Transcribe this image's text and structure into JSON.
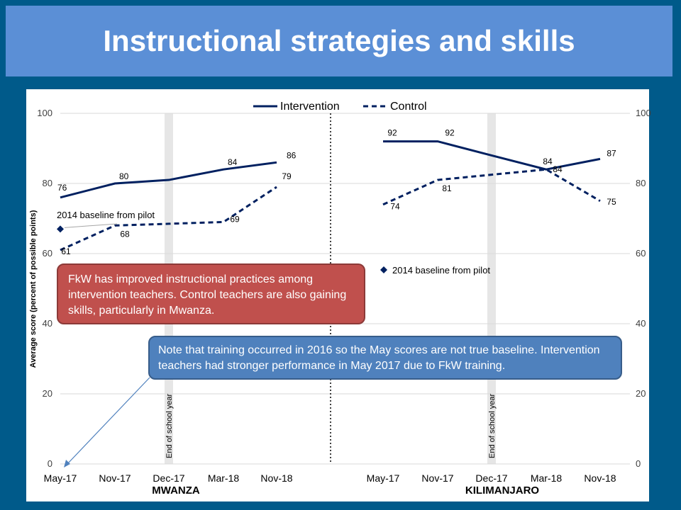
{
  "slide_title": "Instructional strategies and skills",
  "colors": {
    "background": "#005a8a",
    "title_bar": "#5b8fd6",
    "series": "#002060",
    "red_callout": "#c0504d",
    "blue_callout": "#4f81bd",
    "school_year_band": "#e6e6e6"
  },
  "callouts": {
    "red": "FkW has improved instructional practices among intervention teachers. Control teachers are also gaining skills, particularly in Mwanza.",
    "blue": "Note that training occurred in 2016 so the May scores are not true baseline. Intervention teachers had stronger performance in May 2017 due to FkW training."
  },
  "chart_data": {
    "type": "line",
    "legend": [
      {
        "name": "Intervention",
        "style": "solid"
      },
      {
        "name": "Control",
        "style": "dashed"
      }
    ],
    "legend_position": "top-center",
    "ylabel": "Average score (percent of possible points)",
    "ylim": [
      0,
      100
    ],
    "yticks": [
      "0",
      "20",
      "40",
      "60",
      "80",
      "100"
    ],
    "grid": true,
    "panels": [
      {
        "name": "MWANZA",
        "categories": [
          "May-17",
          "Nov-17",
          "Dec-17",
          "Mar-18",
          "Nov-18"
        ],
        "series": [
          {
            "name": "Intervention",
            "values": [
              76,
              80,
              81,
              84,
              86
            ],
            "labels": [
              "76",
              "80",
              "",
              "84",
              "86"
            ]
          },
          {
            "name": "Control",
            "values": [
              61,
              68,
              68.5,
              69,
              79
            ],
            "labels": [
              "61",
              "68",
              "",
              "69",
              "79"
            ]
          }
        ],
        "baseline": {
          "label": "2014 baseline from pilot",
          "value": 67,
          "x_index": 0
        },
        "band_label": "End of school year",
        "band_index": 2
      },
      {
        "name": "KILIMANJARO",
        "categories": [
          "May-17",
          "Nov-17",
          "Dec-17",
          "Mar-18",
          "Nov-18"
        ],
        "series": [
          {
            "name": "Intervention",
            "values": [
              92,
              92,
              88,
              84,
              87
            ],
            "labels": [
              "92",
              "92",
              "",
              "84",
              "87"
            ]
          },
          {
            "name": "Control",
            "values": [
              74,
              81,
              82.5,
              84,
              75
            ],
            "labels": [
              "74",
              "81",
              "",
              "84",
              "75"
            ]
          }
        ],
        "baseline": {
          "label": "2014 baseline from pilot"
        },
        "band_label": "End of school year",
        "band_index": 2
      }
    ]
  }
}
